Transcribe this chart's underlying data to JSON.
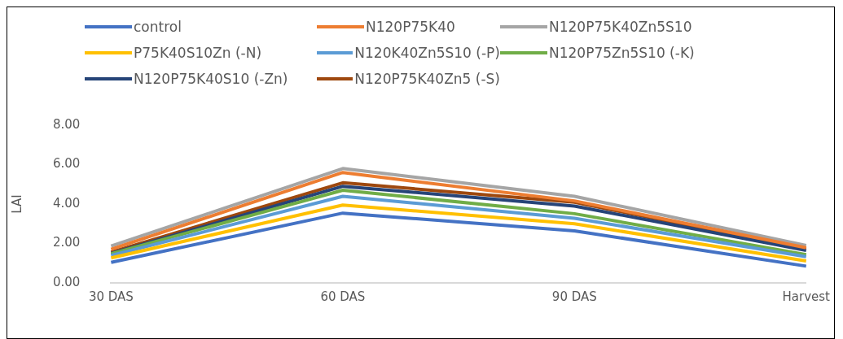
{
  "chart_data": {
    "type": "line",
    "ylabel": "LAI",
    "categories": [
      "30 DAS",
      "60 DAS",
      "90 DAS",
      "Harvest"
    ],
    "series": [
      {
        "name": "control",
        "color": "#4472c4",
        "values": [
          1.04,
          3.54,
          2.64,
          0.85
        ]
      },
      {
        "name": "N120P75K40",
        "color": "#ed7d31",
        "values": [
          1.71,
          5.6,
          4.16,
          1.78
        ]
      },
      {
        "name": "N120P75K40Zn5S10",
        "color": "#a5a5a5",
        "values": [
          1.87,
          5.8,
          4.39,
          1.9
        ]
      },
      {
        "name": "P75K40S10Zn (-N)",
        "color": "#ffc000",
        "values": [
          1.27,
          3.95,
          3.0,
          1.11
        ]
      },
      {
        "name": "N120K40Zn5S10 (-P)",
        "color": "#5b9bd5",
        "values": [
          1.39,
          4.39,
          3.28,
          1.33
        ]
      },
      {
        "name": "N120P75Zn5S10 (-K)",
        "color": "#70ad47",
        "values": [
          1.48,
          4.7,
          3.51,
          1.43
        ]
      },
      {
        "name": "N120P75K40S10 (-Zn)",
        "color": "#264478",
        "values": [
          1.5,
          4.9,
          3.9,
          1.65
        ]
      },
      {
        "name": "N120P75K40Zn5 (-S)",
        "color": "#9e480e",
        "values": [
          1.56,
          5.08,
          4.09,
          1.71
        ]
      }
    ],
    "ylim": [
      0,
      8
    ],
    "yticks": [
      {
        "value": 0,
        "label": "0.00"
      },
      {
        "value": 2,
        "label": "2.00"
      },
      {
        "value": 4,
        "label": "4.00"
      },
      {
        "value": 6,
        "label": "6.00"
      },
      {
        "value": 8,
        "label": "8.00"
      }
    ],
    "grid": false,
    "legend": "top",
    "marker": "none",
    "line_style": "solid"
  }
}
